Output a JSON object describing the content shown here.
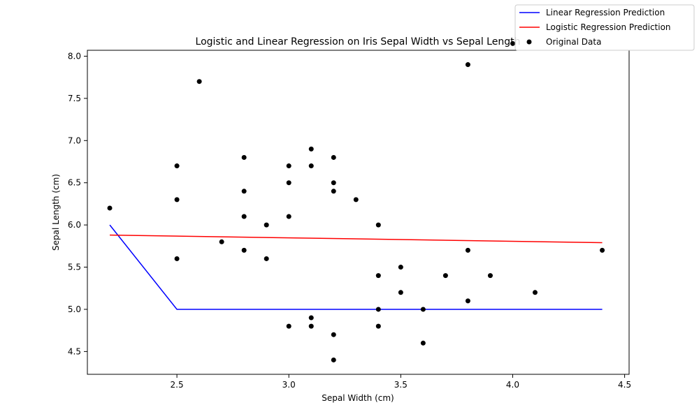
{
  "chart_data": {
    "type": "scatter",
    "title": "Logistic and Linear Regression on Iris Sepal Width vs Sepal Length",
    "xlabel": "Sepal Width (cm)",
    "ylabel": "Sepal Length (cm)",
    "xlim": [
      2.1,
      4.52
    ],
    "ylim": [
      4.23,
      8.07
    ],
    "xticks": [
      "2.5",
      "3.0",
      "3.5",
      "4.0",
      "4.5"
    ],
    "yticks": [
      "4.5",
      "5.0",
      "5.5",
      "6.0",
      "6.5",
      "7.0",
      "7.5",
      "8.0"
    ],
    "grid": false,
    "legend_position": "top-right",
    "series": [
      {
        "name": "Linear Regression Prediction",
        "kind": "line",
        "color": "#0000ff",
        "x": [
          2.2,
          2.5,
          4.4
        ],
        "y": [
          6.0,
          5.0,
          5.0
        ]
      },
      {
        "name": "Logistic Regression Prediction",
        "kind": "line",
        "color": "#ff0000",
        "x": [
          2.2,
          4.4
        ],
        "y": [
          5.88,
          5.79
        ]
      },
      {
        "name": "Original Data",
        "kind": "scatter",
        "color": "#000000",
        "points": [
          [
            2.2,
            6.2
          ],
          [
            2.5,
            6.7
          ],
          [
            2.5,
            6.3
          ],
          [
            2.5,
            5.6
          ],
          [
            2.6,
            7.7
          ],
          [
            2.7,
            5.8
          ],
          [
            2.8,
            6.8
          ],
          [
            2.8,
            6.4
          ],
          [
            2.8,
            6.1
          ],
          [
            2.8,
            5.7
          ],
          [
            2.9,
            6.0
          ],
          [
            2.9,
            5.6
          ],
          [
            3.0,
            6.7
          ],
          [
            3.0,
            6.5
          ],
          [
            3.0,
            6.1
          ],
          [
            3.0,
            4.8
          ],
          [
            3.1,
            6.9
          ],
          [
            3.1,
            6.7
          ],
          [
            3.1,
            4.9
          ],
          [
            3.1,
            4.8
          ],
          [
            3.2,
            6.8
          ],
          [
            3.2,
            6.5
          ],
          [
            3.2,
            6.4
          ],
          [
            3.2,
            4.7
          ],
          [
            3.2,
            4.4
          ],
          [
            3.3,
            6.3
          ],
          [
            3.4,
            6.0
          ],
          [
            3.4,
            5.4
          ],
          [
            3.4,
            5.0
          ],
          [
            3.4,
            4.8
          ],
          [
            3.5,
            5.5
          ],
          [
            3.5,
            5.2
          ],
          [
            3.6,
            5.0
          ],
          [
            3.6,
            4.6
          ],
          [
            3.7,
            5.4
          ],
          [
            3.8,
            7.9
          ],
          [
            3.8,
            5.7
          ],
          [
            3.8,
            5.1
          ],
          [
            3.9,
            5.4
          ],
          [
            4.0,
            8.15
          ],
          [
            4.1,
            5.2
          ],
          [
            4.4,
            5.7
          ]
        ]
      }
    ]
  }
}
